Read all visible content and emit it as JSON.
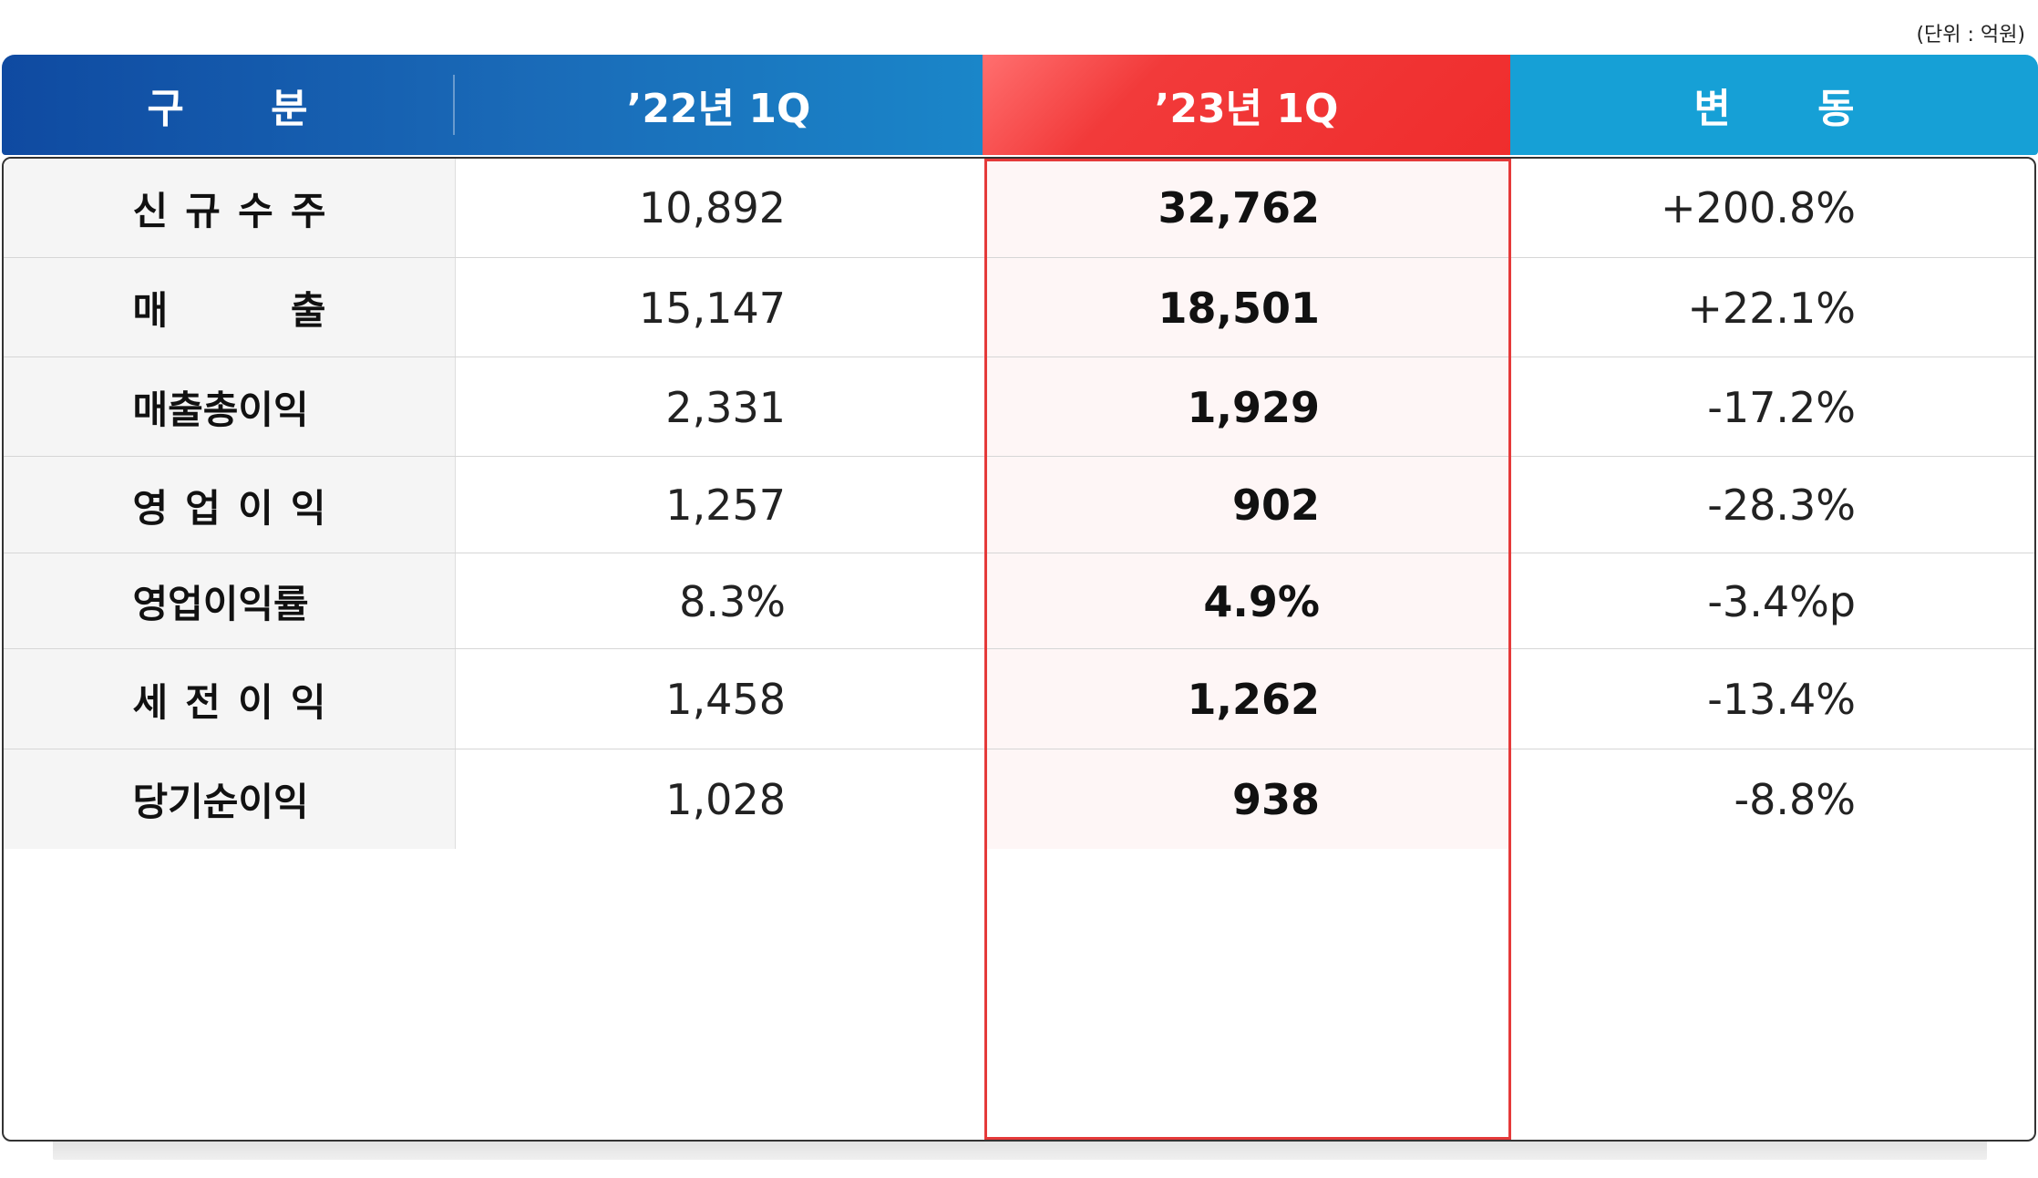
{
  "unit_note": "(단위 : 억원)",
  "chart_data": {
    "type": "table",
    "columns": [
      "구 분",
      "’22년 1Q",
      "’23년 1Q",
      "변 동"
    ],
    "rows": [
      {
        "label": "신 규 수 주",
        "q22": "10,892",
        "q23": "32,762",
        "change": "+200.8%"
      },
      {
        "label": "매 출",
        "q22": "15,147",
        "q23": "18,501",
        "change": "+22.1%"
      },
      {
        "label": "매출총이익",
        "q22": "2,331",
        "q23": "1,929",
        "change": "-17.2%"
      },
      {
        "label": "영 업 이 익",
        "q22": "1,257",
        "q23": "902",
        "change": "-28.3%"
      },
      {
        "label": "영업이익률",
        "q22": "8.3%",
        "q23": "4.9%",
        "change": "-3.4%p"
      },
      {
        "label": "세 전 이 익",
        "q22": "1,458",
        "q23": "1,262",
        "change": "-13.4%"
      },
      {
        "label": "당기순이익",
        "q22": "1,028",
        "q23": "938",
        "change": "-8.8%"
      }
    ],
    "highlight_column": "’23년 1Q",
    "colors": {
      "header_blue": "#1a5fb0",
      "header_red": "#ef2d2d",
      "header_cyan": "#16a0d6",
      "highlight_border": "#e53a3a"
    }
  }
}
